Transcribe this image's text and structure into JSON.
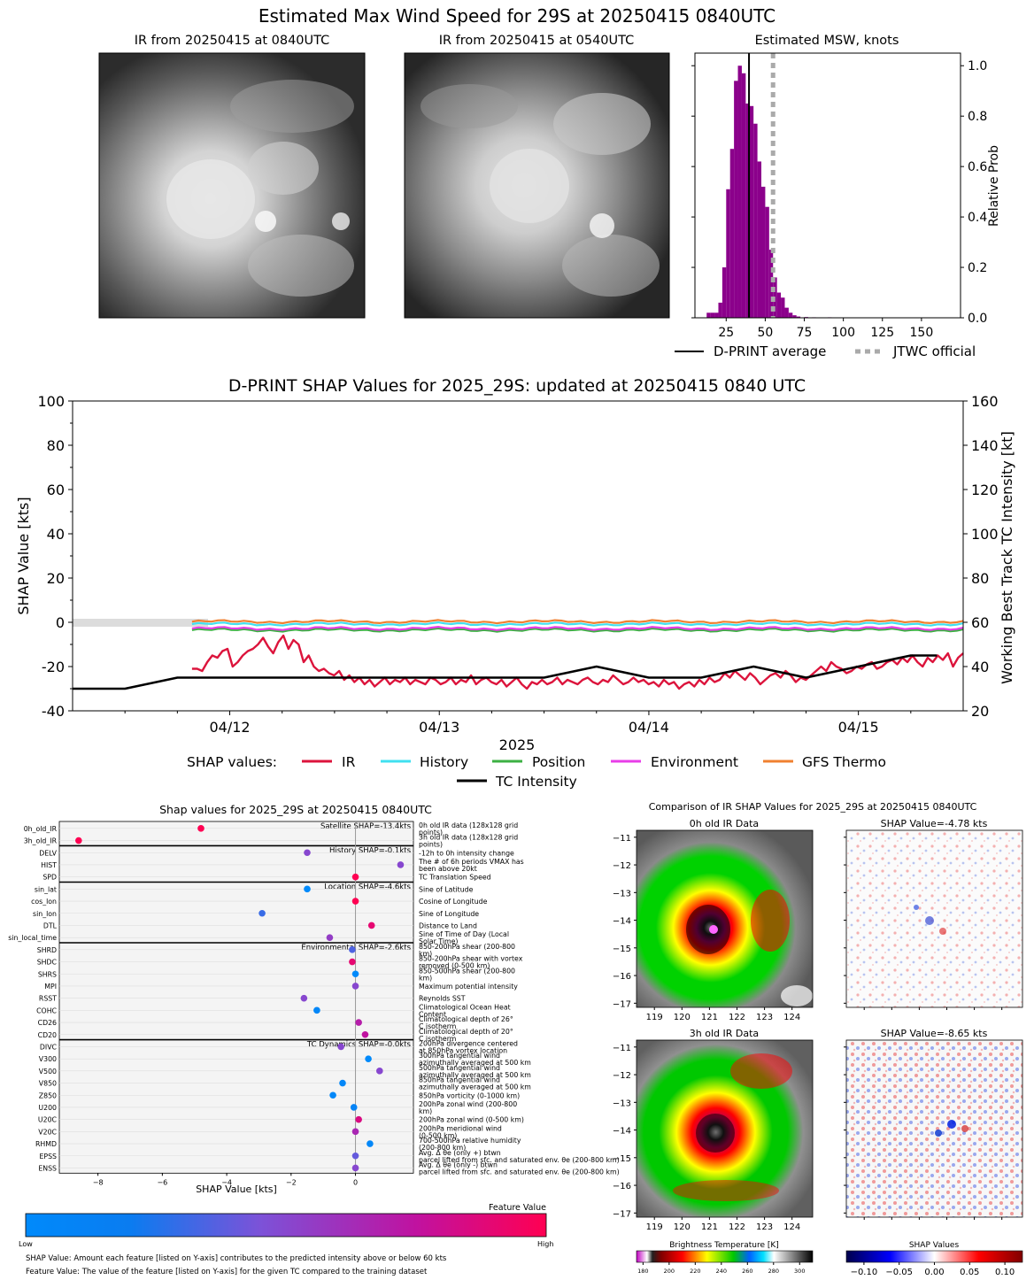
{
  "title": "Estimated Max Wind Speed for 29S at 20250415 0840UTC",
  "ir_panels": {
    "current_title": "IR from 20250415 at 0840UTC",
    "previous_title": "IR from 20250415 at 0540UTC"
  },
  "colors": {
    "hist_bar": "#8b008b",
    "ir": "#dc143c",
    "history": "#40e0f0",
    "position": "#3cb043",
    "environment": "#e83de8",
    "gfs_thermo": "#f08030",
    "tc_intensity": "#000000",
    "jtwc": "#aaaaaa"
  },
  "chart_data": [
    {
      "id": "msw_hist",
      "type": "bar",
      "title": "Estimated MSW, knots",
      "ylabel": "Relative Prob",
      "xlim": [
        5,
        175
      ],
      "ylim": [
        0,
        1.05
      ],
      "xticks": [
        25,
        50,
        75,
        100,
        125,
        150
      ],
      "yticks": [
        0.0,
        0.2,
        0.4,
        0.6,
        0.8,
        1.0
      ],
      "bin_width": 2.5,
      "bins": [
        [
          12.5,
          0.02
        ],
        [
          15,
          0.02
        ],
        [
          17.5,
          0.02
        ],
        [
          20,
          0.06
        ],
        [
          22.5,
          0.2
        ],
        [
          25,
          0.51
        ],
        [
          27.5,
          0.67
        ],
        [
          30,
          0.94
        ],
        [
          32.5,
          1.0
        ],
        [
          35,
          0.97
        ],
        [
          37.5,
          0.85
        ],
        [
          40,
          0.84
        ],
        [
          42.5,
          0.77
        ],
        [
          45,
          0.62
        ],
        [
          47.5,
          0.52
        ],
        [
          50,
          0.44
        ],
        [
          52.5,
          0.27
        ],
        [
          55,
          0.16
        ],
        [
          57.5,
          0.1
        ],
        [
          60,
          0.08
        ],
        [
          62.5,
          0.04
        ],
        [
          65,
          0.02
        ],
        [
          67.5,
          0.01
        ],
        [
          70,
          0.005
        ],
        [
          75,
          0.003
        ],
        [
          80,
          0.002
        ],
        [
          90,
          0.002
        ],
        [
          100,
          0.001
        ],
        [
          120,
          0.001
        ],
        [
          150,
          0.001
        ],
        [
          165,
          0.001
        ]
      ],
      "dprint_average": 39.6,
      "jtwc_official": 55,
      "legend": [
        "D-PRINT average",
        "JTWC official"
      ]
    },
    {
      "id": "shap_timeseries",
      "type": "line",
      "title": "D-PRINT SHAP Values for 2025_29S: updated at 20250415 0840 UTC",
      "xlabel": "2025",
      "ylabel": "SHAP Value [kts]",
      "ylabel_right": "Working Best Track TC Intensity [kt]",
      "xlim": [
        11.25,
        15.5
      ],
      "ylim": [
        -40,
        100
      ],
      "ylim_right": [
        20,
        160
      ],
      "xticks": [
        [
          12,
          "04/12"
        ],
        [
          13,
          "04/13"
        ],
        [
          14,
          "04/14"
        ],
        [
          15,
          "04/15"
        ]
      ],
      "yticks": [
        -40,
        -20,
        0,
        20,
        40,
        60,
        80,
        100
      ],
      "yticks_right": [
        20,
        40,
        60,
        80,
        100,
        120,
        140,
        160
      ],
      "legend_label": "SHAP values:",
      "series": [
        {
          "name": "IR",
          "key": "ir",
          "values": [
            -21,
            -21,
            -22,
            -18,
            -15,
            -16,
            -13,
            -12,
            -20,
            -18,
            -15,
            -13,
            -12,
            -10,
            -7,
            -11,
            -14,
            -9,
            -6,
            -12,
            -8,
            -10,
            -18,
            -15,
            -20,
            -22,
            -21,
            -23,
            -24,
            -22,
            -26,
            -24,
            -27,
            -25,
            -28,
            -26,
            -29,
            -27,
            -25,
            -28,
            -26,
            -27,
            -25,
            -28,
            -26,
            -27,
            -28,
            -25,
            -26,
            -28,
            -27,
            -25,
            -28,
            -26,
            -27,
            -24,
            -28,
            -26,
            -25,
            -27,
            -28,
            -26,
            -29,
            -27,
            -25,
            -28,
            -30,
            -27,
            -28,
            -26,
            -28,
            -27,
            -25,
            -28,
            -26,
            -27,
            -28,
            -26,
            -25,
            -27,
            -28,
            -26,
            -27,
            -24,
            -26,
            -28,
            -27,
            -25,
            -27,
            -26,
            -28,
            -27,
            -29,
            -26,
            -28,
            -27,
            -30,
            -28,
            -27,
            -29,
            -26,
            -28,
            -25,
            -27,
            -26,
            -23,
            -25,
            -22,
            -24,
            -26,
            -23,
            -25,
            -28,
            -26,
            -24,
            -23,
            -25,
            -22,
            -24,
            -27,
            -25,
            -26,
            -24,
            -22,
            -20,
            -22,
            -18,
            -20,
            -21,
            -23,
            -22,
            -20,
            -21,
            -19,
            -18,
            -21,
            -20,
            -18,
            -17,
            -19,
            -16,
            -18,
            -15,
            -18,
            -20,
            -16,
            -18,
            -15,
            -17,
            -14,
            -20,
            -16,
            -14
          ],
          "x_start": 11.82,
          "x_end": 15.5
        },
        {
          "name": "History",
          "key": "history",
          "const": -0.8,
          "x_start": 11.82,
          "x_end": 15.5
        },
        {
          "name": "Position",
          "key": "position",
          "const": -3.5,
          "x_start": 11.82,
          "x_end": 15.5
        },
        {
          "name": "Environment",
          "key": "environment",
          "const": -2.8,
          "x_start": 11.82,
          "x_end": 15.5
        },
        {
          "name": "GFS Thermo",
          "key": "gfs_thermo",
          "const": 0.3,
          "x_start": 11.82,
          "x_end": 15.5
        },
        {
          "name": "TC Intensity",
          "key": "tc_intensity",
          "axis": "right",
          "points": [
            [
              11.25,
              30
            ],
            [
              11.5,
              30
            ],
            [
              11.75,
              35
            ],
            [
              12.0,
              35
            ],
            [
              12.25,
              35
            ],
            [
              12.5,
              35
            ],
            [
              12.75,
              35
            ],
            [
              13.0,
              35
            ],
            [
              13.25,
              35
            ],
            [
              13.5,
              35
            ],
            [
              13.75,
              40
            ],
            [
              14.0,
              35
            ],
            [
              14.25,
              35
            ],
            [
              14.5,
              40
            ],
            [
              14.75,
              35
            ],
            [
              15.0,
              40
            ],
            [
              15.25,
              45
            ],
            [
              15.375,
              45
            ]
          ]
        }
      ]
    },
    {
      "id": "shap_features",
      "type": "scatter",
      "title": "Shap values for 2025_29S at 20250415 0840UTC",
      "xlabel": "SHAP Value [kts]",
      "xlim": [
        -9.2,
        1.8
      ],
      "xticks": [
        -8,
        -6,
        -4,
        -2,
        0
      ],
      "groups": [
        {
          "label": "Satellite SHAP=-13.4kts",
          "features": [
            {
              "name": "0h_old_IR",
              "desc": "0h old IR data (128x128 grid points)",
              "shap": -4.8,
              "fv": 1.0
            },
            {
              "name": "3h_old_IR",
              "desc": "3h old IR data (128x128 grid points)",
              "shap": -8.6,
              "fv": 1.0
            }
          ]
        },
        {
          "label": "History SHAP=-0.1kts",
          "features": [
            {
              "name": "DELV",
              "desc": "-12h to 0h intensity change",
              "shap": -1.5,
              "fv": 0.5
            },
            {
              "name": "HIST",
              "desc": "The # of 6h periods VMAX has been above 20kt",
              "shap": 1.4,
              "fv": 0.5
            },
            {
              "name": "SPD",
              "desc": "TC Translation Speed",
              "shap": 0.0,
              "fv": 1.0
            }
          ]
        },
        {
          "label": "Location SHAP=-4.6kts",
          "features": [
            {
              "name": "sin_lat",
              "desc": "Sine of Latitude",
              "shap": -1.5,
              "fv": 0.0
            },
            {
              "name": "cos_lon",
              "desc": "Cosine of Longitude",
              "shap": 0.0,
              "fv": 1.0
            },
            {
              "name": "sin_lon",
              "desc": "Sine of Longitude",
              "shap": -2.9,
              "fv": 0.3
            },
            {
              "name": "DTL",
              "desc": "Distance to Land",
              "shap": 0.5,
              "fv": 0.9
            },
            {
              "name": "sin_local_time",
              "desc": "Sine of Time of Day (Local Solar Time)",
              "shap": -0.8,
              "fv": 0.55
            }
          ]
        },
        {
          "label": "Environmental SHAP=-2.6kts",
          "features": [
            {
              "name": "SHRD",
              "desc": "850-200hPa shear (200-800 km)",
              "shap": -0.1,
              "fv": 0.35
            },
            {
              "name": "SHDC",
              "desc": "850-200hPa shear with vortex removed (0-500 km)",
              "shap": -0.1,
              "fv": 0.9
            },
            {
              "name": "SHRS",
              "desc": "850-500hPa shear (200-800 km)",
              "shap": 0.0,
              "fv": 0.0
            },
            {
              "name": "MPI",
              "desc": "Maximum potential intensity",
              "shap": 0.0,
              "fv": 0.5
            },
            {
              "name": "RSST",
              "desc": "Reynolds SST",
              "shap": -1.6,
              "fv": 0.5
            },
            {
              "name": "COHC",
              "desc": "Climatological Ocean Heat Content",
              "shap": -1.2,
              "fv": 0.05
            },
            {
              "name": "CD26",
              "desc": "Climatological depth of 26° C isotherm",
              "shap": 0.1,
              "fv": 0.7
            },
            {
              "name": "CD20",
              "desc": "Climatological depth of 20° C isotherm",
              "shap": 0.3,
              "fv": 0.75
            }
          ]
        },
        {
          "label": "TC Dynamics SHAP=-0.0kts",
          "features": [
            {
              "name": "DIVC",
              "desc": "200hPa divergence centered at 850hPa vortex location",
              "shap": -0.45,
              "fv": 0.5
            },
            {
              "name": "V300",
              "desc": "300hPa tangential wind azimuthally averaged at 500 km",
              "shap": 0.4,
              "fv": 0.0
            },
            {
              "name": "V500",
              "desc": "500hPa tangential wind azimuthally averaged at 500 km",
              "shap": 0.75,
              "fv": 0.5
            },
            {
              "name": "V850",
              "desc": "850hPa tangential wind azimuthally averaged at 500 km",
              "shap": -0.4,
              "fv": 0.05
            },
            {
              "name": "Z850",
              "desc": "850hPa vorticity (0-1000 km)",
              "shap": -0.7,
              "fv": 0.05
            },
            {
              "name": "U200",
              "desc": "200hPa zonal wind (200-800 km)",
              "shap": -0.05,
              "fv": 0.1
            },
            {
              "name": "U20C",
              "desc": "200hPa zonal wind (0-500 km)",
              "shap": 0.1,
              "fv": 0.85
            },
            {
              "name": "V20C",
              "desc": "200hPa meridional wind (0-500 km)",
              "shap": 0.0,
              "fv": 0.65
            },
            {
              "name": "RHMD",
              "desc": "700-500hPa relative humidity (200-800 km)",
              "shap": 0.45,
              "fv": 0.05
            },
            {
              "name": "EPSS",
              "desc": "Avg. Δ θe (only +) btwn parcel lifted from sfc. and saturated env. θe (200-800 km)",
              "shap": 0.0,
              "fv": 0.4
            },
            {
              "name": "ENSS",
              "desc": "Avg. Δ θe (only -) btwn parcel lifted from sfc. and saturated env. θe (200-800 km)",
              "shap": 0.0,
              "fv": 0.5
            }
          ]
        }
      ],
      "colorbar_title": "Feature Value",
      "colorbar_low": "Low",
      "colorbar_high": "High",
      "note1": "SHAP Value: Amount each feature [listed on Y-axis] contributes to the predicted intensity above or below 60 kts",
      "note2": "Feature Value: The value of the feature [listed on Y-axis] for the given TC compared to the training dataset"
    },
    {
      "id": "ir_comparison",
      "type": "heatmap",
      "title": "Comparison of IR SHAP Values for 2025_29S at 20250415 0840UTC",
      "panels": [
        {
          "title": "0h old IR Data",
          "shap_title": "SHAP Value=-4.78 kts"
        },
        {
          "title": "3h old IR Data",
          "shap_title": "SHAP Value=-8.65 kts"
        }
      ],
      "xticks": [
        119,
        120,
        121,
        122,
        123,
        124
      ],
      "yticks": [
        -11,
        -12,
        -13,
        -14,
        -15,
        -16,
        -17
      ],
      "bt_label": "Brightness Temperature [K]",
      "bt_ticks": [
        180,
        200,
        220,
        240,
        260,
        280,
        300
      ],
      "shap_label": "SHAP Values",
      "shap_ticks": [
        "−0.10",
        "−0.05",
        "0.00",
        "0.05",
        "0.10"
      ]
    }
  ]
}
